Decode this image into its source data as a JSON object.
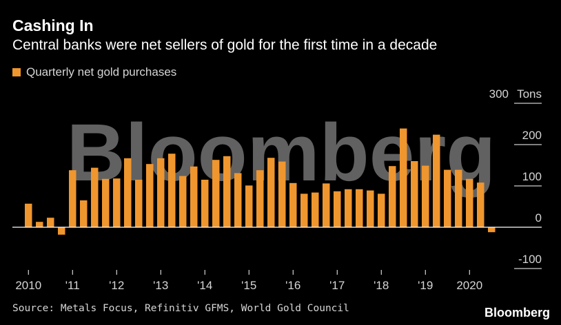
{
  "header": {
    "title": "Cashing In",
    "subtitle": "Central banks were net sellers of gold for the first time in a decade"
  },
  "legend": {
    "label": "Quarterly net gold purchases"
  },
  "footer": {
    "source": "Source: Metals Focus, Refinitiv GFMS, World Gold Council",
    "brand": "Bloomberg"
  },
  "watermark": "Bloomberg",
  "colors": {
    "bar": "#f0962e",
    "background": "#000000",
    "gridline": "#ffffff",
    "text": "#d6d6d6"
  },
  "chart_data": {
    "type": "bar",
    "title": "Cashing In",
    "subtitle": "Central banks were net sellers of gold for the first time in a decade",
    "xlabel": "",
    "ylabel": "Tons",
    "ylim": [
      -100,
      300
    ],
    "yticks": [
      -100,
      0,
      100,
      200,
      300
    ],
    "ytick_labels": [
      "-100",
      "0",
      "100",
      "200",
      "300"
    ],
    "y_unit_label": "Tons",
    "grid": true,
    "legend_position": "top-left",
    "categories": [
      "2010Q1",
      "2010Q2",
      "2010Q3",
      "2010Q4",
      "2011Q1",
      "2011Q2",
      "2011Q3",
      "2011Q4",
      "2012Q1",
      "2012Q2",
      "2012Q3",
      "2012Q4",
      "2013Q1",
      "2013Q2",
      "2013Q3",
      "2013Q4",
      "2014Q1",
      "2014Q2",
      "2014Q3",
      "2014Q4",
      "2015Q1",
      "2015Q2",
      "2015Q3",
      "2015Q4",
      "2016Q1",
      "2016Q2",
      "2016Q3",
      "2016Q4",
      "2017Q1",
      "2017Q2",
      "2017Q3",
      "2017Q4",
      "2018Q1",
      "2018Q2",
      "2018Q3",
      "2018Q4",
      "2019Q1",
      "2019Q2",
      "2019Q3",
      "2019Q4",
      "2020Q1",
      "2020Q2",
      "2020Q3"
    ],
    "xtick_labels": [
      "2010",
      "'11",
      "'12",
      "'13",
      "'14",
      "'15",
      "'16",
      "'17",
      "'18",
      "'19",
      "2020"
    ],
    "series": [
      {
        "name": "Quarterly net gold purchases",
        "values": [
          57,
          13,
          23,
          -18,
          138,
          65,
          144,
          117,
          118,
          167,
          115,
          153,
          167,
          178,
          124,
          147,
          115,
          163,
          172,
          131,
          101,
          138,
          168,
          159,
          107,
          81,
          84,
          106,
          87,
          92,
          92,
          89,
          81,
          148,
          239,
          160,
          149,
          224,
          139,
          139,
          117,
          108,
          -12
        ]
      }
    ]
  }
}
